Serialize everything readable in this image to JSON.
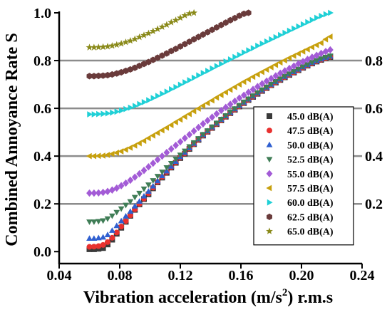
{
  "chart_data": {
    "type": "scatter",
    "xlabel_main": "Vibration acceleration (m/s",
    "xlabel_sup": "2",
    "xlabel_tail": ") r.m.s",
    "ylabel": "Combined Annoyance Rate S",
    "xlim": [
      0.04,
      0.24
    ],
    "ylim": [
      -0.05,
      1.0
    ],
    "x_ticks": [
      "0.04",
      "0.08",
      "0.12",
      "0.16",
      "0.20",
      "0.24"
    ],
    "y_ticks": [
      "0.0",
      "0.2",
      "0.4",
      "0.6",
      "0.8",
      "1.0"
    ],
    "right_ticks": [
      "0.2",
      "0.4",
      "0.6",
      "0.8"
    ],
    "grid_lines": [
      0.2,
      0.4,
      0.6,
      0.8
    ],
    "legend_position": "right-middle",
    "x": [
      0.06,
      0.063,
      0.066,
      0.069,
      0.072,
      0.075,
      0.078,
      0.081,
      0.084,
      0.087,
      0.09,
      0.093,
      0.096,
      0.099,
      0.102,
      0.105,
      0.108,
      0.111,
      0.114,
      0.117,
      0.12,
      0.123,
      0.126,
      0.129,
      0.132,
      0.135,
      0.138,
      0.141,
      0.144,
      0.147,
      0.15,
      0.153,
      0.156,
      0.159,
      0.162,
      0.165,
      0.168,
      0.171,
      0.174,
      0.177,
      0.18,
      0.183,
      0.186,
      0.189,
      0.192,
      0.195,
      0.198,
      0.201,
      0.204,
      0.207,
      0.21,
      0.213,
      0.216,
      0.219
    ],
    "series": [
      {
        "name": "45.0 dB(A)",
        "color": "#3a3a3a",
        "marker": "square",
        "values": [
          0.01,
          0.01,
          0.012,
          0.015,
          0.03,
          0.05,
          0.075,
          0.1,
          0.125,
          0.15,
          0.175,
          0.198,
          0.22,
          0.24,
          0.265,
          0.29,
          0.31,
          0.33,
          0.352,
          0.372,
          0.392,
          0.41,
          0.43,
          0.45,
          0.468,
          0.486,
          0.502,
          0.518,
          0.534,
          0.55,
          0.565,
          0.58,
          0.594,
          0.608,
          0.622,
          0.635,
          0.648,
          0.661,
          0.673,
          0.685,
          0.697,
          0.708,
          0.719,
          0.73,
          0.74,
          0.75,
          0.76,
          0.77,
          0.779,
          0.788,
          0.796,
          0.803,
          0.81,
          0.815
        ]
      },
      {
        "name": "47.5 dB(A)",
        "color": "#e8312f",
        "marker": "circle",
        "values": [
          0.02,
          0.021,
          0.023,
          0.028,
          0.04,
          0.058,
          0.08,
          0.105,
          0.128,
          0.152,
          0.177,
          0.2,
          0.222,
          0.244,
          0.268,
          0.292,
          0.313,
          0.333,
          0.354,
          0.374,
          0.394,
          0.412,
          0.432,
          0.451,
          0.469,
          0.487,
          0.503,
          0.519,
          0.535,
          0.551,
          0.566,
          0.581,
          0.595,
          0.609,
          0.623,
          0.636,
          0.649,
          0.662,
          0.674,
          0.686,
          0.698,
          0.709,
          0.72,
          0.731,
          0.741,
          0.751,
          0.761,
          0.771,
          0.78,
          0.789,
          0.797,
          0.804,
          0.811,
          0.816
        ]
      },
      {
        "name": "50.0 dB(A)",
        "color": "#2f5fd0",
        "marker": "triangle-up",
        "values": [
          0.055,
          0.055,
          0.057,
          0.06,
          0.07,
          0.088,
          0.108,
          0.128,
          0.148,
          0.168,
          0.19,
          0.21,
          0.232,
          0.252,
          0.274,
          0.296,
          0.317,
          0.337,
          0.357,
          0.377,
          0.397,
          0.415,
          0.434,
          0.453,
          0.471,
          0.489,
          0.505,
          0.521,
          0.537,
          0.553,
          0.568,
          0.583,
          0.597,
          0.611,
          0.625,
          0.638,
          0.651,
          0.664,
          0.676,
          0.688,
          0.7,
          0.711,
          0.722,
          0.733,
          0.743,
          0.753,
          0.763,
          0.773,
          0.782,
          0.791,
          0.799,
          0.806,
          0.813,
          0.818
        ]
      },
      {
        "name": "52.5 dB(A)",
        "color": "#3f7d56",
        "marker": "triangle-down",
        "values": [
          0.125,
          0.125,
          0.127,
          0.13,
          0.138,
          0.15,
          0.165,
          0.18,
          0.195,
          0.21,
          0.228,
          0.245,
          0.263,
          0.28,
          0.298,
          0.316,
          0.334,
          0.352,
          0.37,
          0.388,
          0.405,
          0.422,
          0.44,
          0.457,
          0.474,
          0.491,
          0.507,
          0.523,
          0.539,
          0.555,
          0.57,
          0.585,
          0.599,
          0.613,
          0.627,
          0.64,
          0.653,
          0.666,
          0.678,
          0.69,
          0.702,
          0.713,
          0.724,
          0.735,
          0.745,
          0.755,
          0.765,
          0.775,
          0.784,
          0.793,
          0.801,
          0.808,
          0.815,
          0.82
        ]
      },
      {
        "name": "55.0 dB(A)",
        "color": "#a35bd6",
        "marker": "diamond",
        "values": [
          0.245,
          0.245,
          0.246,
          0.248,
          0.252,
          0.258,
          0.266,
          0.276,
          0.287,
          0.299,
          0.312,
          0.326,
          0.34,
          0.355,
          0.37,
          0.385,
          0.4,
          0.415,
          0.43,
          0.445,
          0.46,
          0.475,
          0.49,
          0.505,
          0.52,
          0.535,
          0.549,
          0.563,
          0.577,
          0.591,
          0.604,
          0.617,
          0.63,
          0.643,
          0.655,
          0.667,
          0.679,
          0.691,
          0.703,
          0.714,
          0.725,
          0.736,
          0.747,
          0.757,
          0.767,
          0.777,
          0.787,
          0.796,
          0.805,
          0.814,
          0.822,
          0.83,
          0.838,
          0.845
        ]
      },
      {
        "name": "57.5 dB(A)",
        "color": "#c7a00d",
        "marker": "triangle-left",
        "values": [
          0.4,
          0.4,
          0.401,
          0.402,
          0.405,
          0.409,
          0.414,
          0.42,
          0.427,
          0.435,
          0.444,
          0.454,
          0.464,
          0.475,
          0.486,
          0.497,
          0.508,
          0.519,
          0.53,
          0.542,
          0.553,
          0.565,
          0.576,
          0.588,
          0.599,
          0.611,
          0.622,
          0.633,
          0.645,
          0.656,
          0.667,
          0.678,
          0.689,
          0.7,
          0.711,
          0.721,
          0.732,
          0.742,
          0.752,
          0.762,
          0.772,
          0.782,
          0.792,
          0.801,
          0.811,
          0.82,
          0.829,
          0.838,
          0.847,
          0.856,
          0.865,
          0.874,
          0.889,
          0.9
        ]
      },
      {
        "name": "60.0 dB(A)",
        "color": "#1fd0d6",
        "marker": "triangle-right",
        "values": [
          0.575,
          0.575,
          0.576,
          0.577,
          0.579,
          0.582,
          0.586,
          0.591,
          0.597,
          0.603,
          0.61,
          0.618,
          0.626,
          0.634,
          0.643,
          0.652,
          0.661,
          0.67,
          0.68,
          0.689,
          0.699,
          0.709,
          0.718,
          0.728,
          0.738,
          0.748,
          0.757,
          0.767,
          0.777,
          0.786,
          0.796,
          0.805,
          0.815,
          0.824,
          0.834,
          0.843,
          0.852,
          0.862,
          0.871,
          0.88,
          0.889,
          0.898,
          0.907,
          0.916,
          0.925,
          0.934,
          0.943,
          0.952,
          0.961,
          0.97,
          0.979,
          0.987,
          0.994,
          1.0
        ]
      },
      {
        "name": "62.5 dB(A)",
        "color": "#6a3b3b",
        "marker": "hexagon",
        "values": [
          0.735,
          0.735,
          0.736,
          0.737,
          0.739,
          0.742,
          0.746,
          0.751,
          0.757,
          0.763,
          0.77,
          0.778,
          0.786,
          0.794,
          0.803,
          0.812,
          0.821,
          0.83,
          0.84,
          0.849,
          0.859,
          0.869,
          0.879,
          0.889,
          0.899,
          0.909,
          0.919,
          0.929,
          0.939,
          0.949,
          0.959,
          0.969,
          0.978,
          0.988,
          0.996,
          1.0,
          null,
          null,
          null,
          null,
          null,
          null,
          null,
          null,
          null,
          null,
          null,
          null,
          null,
          null,
          null,
          null,
          null,
          null
        ]
      },
      {
        "name": "65.0 dB(A)",
        "color": "#8a8a1a",
        "marker": "star",
        "values": [
          0.855,
          0.855,
          0.856,
          0.857,
          0.859,
          0.862,
          0.866,
          0.871,
          0.877,
          0.883,
          0.89,
          0.898,
          0.906,
          0.914,
          0.923,
          0.932,
          0.941,
          0.95,
          0.96,
          0.969,
          0.979,
          0.989,
          0.997,
          1.0,
          null,
          null,
          null,
          null,
          null,
          null,
          null,
          null,
          null,
          null,
          null,
          null,
          null,
          null,
          null,
          null,
          null,
          null,
          null,
          null,
          null,
          null,
          null,
          null,
          null,
          null,
          null,
          null,
          null,
          null
        ]
      }
    ]
  }
}
